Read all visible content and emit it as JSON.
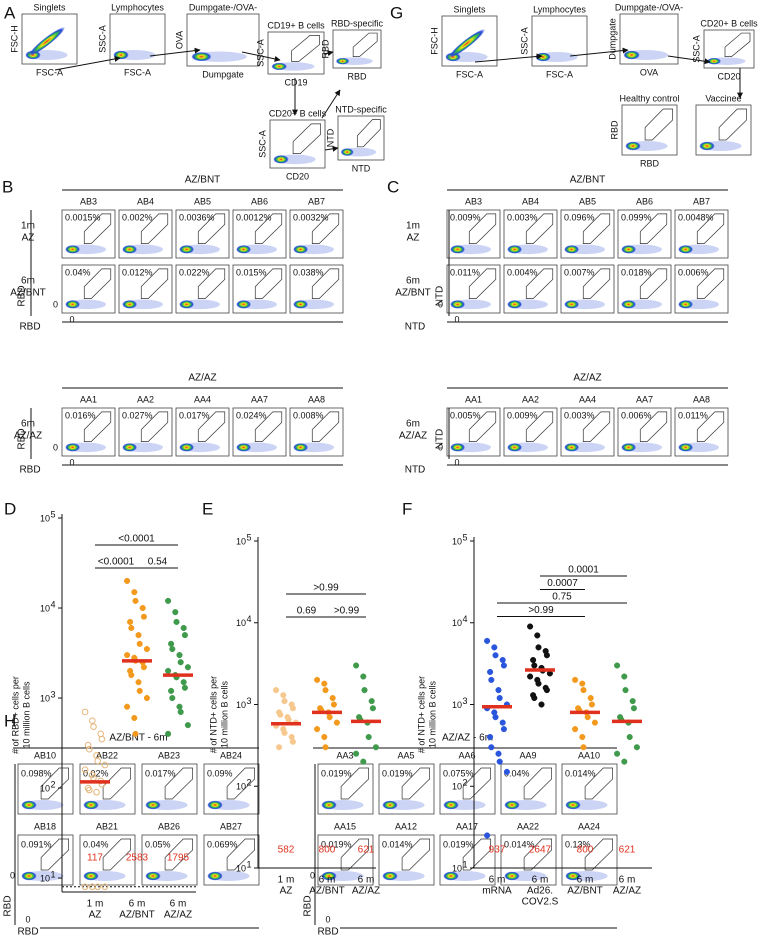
{
  "panel_a": {
    "letter": "A",
    "plots": [
      {
        "title": "Singlets",
        "y_label": "FSC-H",
        "x_label": "FSC-A"
      },
      {
        "title": "Lymphocytes",
        "y_label": "SSC-A",
        "x_label": "FSC-A"
      },
      {
        "title": "Dumpgate-/OVA-",
        "y_label": "OVA",
        "x_label": "Dumpgate"
      },
      {
        "title": "CD19+ B cells",
        "y_label": "SSC-A",
        "x_label": "CD19"
      },
      {
        "title": "RBD-specific",
        "y_label": "RBD",
        "x_label": "RBD"
      },
      {
        "title": "CD20+ B cells",
        "y_label": "SSC-A",
        "x_label": "CD20"
      },
      {
        "title": "NTD-specific",
        "y_label": "NTD",
        "x_label": "NTD"
      }
    ]
  },
  "panel_g": {
    "letter": "G",
    "plots": [
      {
        "title": "Singlets",
        "y_label": "FSC-H",
        "x_label": "FSC-A"
      },
      {
        "title": "Lymphocytes",
        "y_label": "SSC-A",
        "x_label": "FSC-A"
      },
      {
        "title": "Dumpgate-/OVA-",
        "y_label": "Dumpgate",
        "x_label": "OVA"
      },
      {
        "title": "CD20+ B cells",
        "y_label": "SSC-A",
        "x_label": "CD20"
      },
      {
        "title": "Healthy control",
        "y_label": "RBD",
        "x_label": "RBD"
      },
      {
        "title": "Vaccinee"
      }
    ]
  },
  "panel_b": {
    "letter": "B",
    "axis_label": "RBD",
    "origin_label": "0",
    "groups": [
      {
        "header": "AZ/BNT",
        "columns": [
          "AB3",
          "AB4",
          "AB5",
          "AB6",
          "AB7"
        ],
        "rows": [
          {
            "label": [
              "1m",
              "AZ"
            ],
            "percents": [
              "0.0015%",
              "0.002%",
              "0.0036%",
              "0.0012%",
              "0.0032%"
            ]
          },
          {
            "label": [
              "6m",
              "AZ/BNT"
            ],
            "percents": [
              "0.04%",
              "0.012%",
              "0.022%",
              "0.015%",
              "0.038%"
            ]
          }
        ]
      },
      {
        "header": "AZ/AZ",
        "columns": [
          "AA1",
          "AA2",
          "AA4",
          "AA7",
          "AA8"
        ],
        "rows": [
          {
            "label": [
              "6m",
              "AZ/AZ"
            ],
            "percents": [
              "0.016%",
              "0.027%",
              "0.017%",
              "0.024%",
              "0.008%"
            ]
          }
        ]
      }
    ]
  },
  "panel_c": {
    "letter": "C",
    "axis_label": "NTD",
    "origin_label": "0",
    "groups": [
      {
        "header": "AZ/BNT",
        "columns": [
          "AB3",
          "AB4",
          "AB5",
          "AB6",
          "AB7"
        ],
        "rows": [
          {
            "label": [
              "1m",
              "AZ"
            ],
            "percents": [
              "0.009%",
              "0.003%",
              "0.096%",
              "0.099%",
              "0.0048%"
            ]
          },
          {
            "label": [
              "6m",
              "AZ/BNT"
            ],
            "percents": [
              "0.011%",
              "0.004%",
              "0.007%",
              "0.018%",
              "0.006%"
            ]
          }
        ]
      },
      {
        "header": "AZ/AZ",
        "columns": [
          "AA1",
          "AA2",
          "AA4",
          "AA7",
          "AA8"
        ],
        "rows": [
          {
            "label": [
              "6m",
              "AZ/AZ"
            ],
            "percents": [
              "0.005%",
              "0.009%",
              "0.003%",
              "0.006%",
              "0.011%"
            ]
          }
        ]
      }
    ]
  },
  "panel_h": {
    "letter": "H",
    "axis_label": "RBD",
    "origin_label": "0",
    "groups": [
      {
        "header": "AZ/BNT - 6m",
        "rows": [
          [
            {
              "label": "AB10",
              "percent": "0.098%"
            },
            {
              "label": "AB22",
              "percent": "0.02%"
            },
            {
              "label": "AB23",
              "percent": "0.017%"
            },
            {
              "label": "AB24",
              "percent": "0.09%"
            }
          ],
          [
            {
              "label": "AB18",
              "percent": "0.091%"
            },
            {
              "label": "AB21",
              "percent": "0.04%"
            },
            {
              "label": "AB26",
              "percent": "0.05%"
            },
            {
              "label": "AB27",
              "percent": "0.069%"
            }
          ]
        ]
      },
      {
        "header": "AZ/AZ - 6m",
        "rows": [
          [
            {
              "label": "AA3",
              "percent": "0.019%"
            },
            {
              "label": "AA5",
              "percent": "0.019%"
            },
            {
              "label": "AA6",
              "percent": "0.075%"
            },
            {
              "label": "AA9",
              "percent": "0.04%"
            },
            {
              "label": "AA10",
              "percent": "0.014%"
            }
          ],
          [
            {
              "label": "AA15",
              "percent": "0.019%"
            },
            {
              "label": "AA12",
              "percent": "0.014%"
            },
            {
              "label": "AA17",
              "percent": "0.019%"
            },
            {
              "label": "AA22",
              "percent": "0.014%"
            },
            {
              "label": "AA24",
              "percent": "0.13%"
            }
          ]
        ]
      }
    ]
  },
  "chart_data": [
    {
      "type": "strip",
      "letter": "D",
      "y_label": [
        "# of RBD+ cells per",
        "10 million B cells"
      ],
      "log_scale": true,
      "ylim": [
        7,
        100000
      ],
      "threshold": 8,
      "yticks": [
        {
          "value": 10,
          "label": "10",
          "exp": "1"
        },
        {
          "value": 100,
          "label": "10",
          "exp": "2"
        },
        {
          "value": 1000,
          "label": "10",
          "exp": "3"
        },
        {
          "value": 10000,
          "label": "10",
          "exp": "4"
        },
        {
          "value": 100000,
          "label": "10",
          "exp": "5"
        }
      ],
      "categories": [
        [
          "1 m",
          "AZ"
        ],
        [
          "6 m",
          "AZ/BNT"
        ],
        [
          "6 m",
          "AZ/AZ"
        ]
      ],
      "groups": [
        {
          "color": "#e6b57a",
          "hollow": true,
          "values": [
            700,
            560,
            480,
            400,
            350,
            300,
            270,
            230,
            200,
            180,
            160,
            140,
            130,
            120,
            110,
            100,
            95,
            90,
            8,
            8,
            8,
            8
          ]
        },
        {
          "color": "#f39a1e",
          "values": [
            20000,
            15000,
            12000,
            10000,
            8000,
            7000,
            6000,
            5000,
            4000,
            3500,
            3000,
            2800,
            2600,
            2500,
            2200,
            2000,
            1800,
            1500,
            1200,
            1000,
            800,
            600,
            400
          ]
        },
        {
          "color": "#3f9a4c",
          "values": [
            12000,
            9000,
            7000,
            6000,
            5000,
            4000,
            3500,
            3000,
            2500,
            2200,
            2000,
            1800,
            1700,
            1500,
            1300,
            1200,
            1000,
            800,
            700,
            500,
            400
          ]
        }
      ],
      "medians": [
        117,
        2583,
        1795
      ],
      "median_color": "#e0301e",
      "comparisons": [
        "<0.0001",
        "<0.0001",
        "0.54"
      ]
    },
    {
      "type": "strip",
      "letter": "E",
      "y_label": [
        "# of NTD+ cells per",
        "10 million B cells"
      ],
      "log_scale": true,
      "ylim": [
        10,
        100000
      ],
      "yticks": [
        {
          "value": 10,
          "label": "10",
          "exp": "1"
        },
        {
          "value": 100,
          "label": "10",
          "exp": "2"
        },
        {
          "value": 1000,
          "label": "10",
          "exp": "3"
        },
        {
          "value": 10000,
          "label": "10",
          "exp": "4"
        },
        {
          "value": 100000,
          "label": "10",
          "exp": "5"
        }
      ],
      "categories": [
        [
          "1 m",
          "AZ"
        ],
        [
          "6 m",
          "AZ/BNT"
        ],
        [
          "6 m",
          "AZ/AZ"
        ]
      ],
      "groups": [
        {
          "color": "#f6c88e",
          "values": [
            1500,
            1300,
            1100,
            1000,
            900,
            800,
            750,
            700,
            650,
            600,
            550,
            500,
            450,
            400,
            350,
            300
          ]
        },
        {
          "color": "#f39a1e",
          "values": [
            2000,
            1800,
            1500,
            1200,
            1000,
            900,
            850,
            800,
            700,
            600,
            500,
            400,
            300
          ]
        },
        {
          "color": "#3f9a4c",
          "values": [
            3000,
            2200,
            1500,
            1100,
            900,
            700,
            650,
            600,
            400,
            300,
            250,
            200
          ]
        }
      ],
      "medians": [
        582,
        800,
        621
      ],
      "median_color": "#e0301e",
      "comparisons": [
        ">0.99",
        "0.69",
        ">0.99"
      ]
    },
    {
      "type": "strip",
      "letter": "F",
      "y_label": [
        "# of NTD+ cells per",
        "10 million B cells"
      ],
      "log_scale": true,
      "ylim": [
        10,
        100000
      ],
      "yticks": [
        {
          "value": 10,
          "label": "10",
          "exp": "1"
        },
        {
          "value": 100,
          "label": "10",
          "exp": "2"
        },
        {
          "value": 1000,
          "label": "10",
          "exp": "3"
        },
        {
          "value": 10000,
          "label": "10",
          "exp": "4"
        },
        {
          "value": 100000,
          "label": "10",
          "exp": "5"
        }
      ],
      "categories": [
        [
          "6 m",
          "mRNA"
        ],
        [
          "6 m",
          "Ad26.",
          "COV2.S"
        ],
        [
          "6 m",
          "AZ/BNT"
        ],
        [
          "6 m",
          "AZ/AZ"
        ]
      ],
      "groups": [
        {
          "color": "#2a55dd",
          "values": [
            6000,
            5000,
            4000,
            3500,
            3000,
            2500,
            2000,
            1500,
            1200,
            1000,
            900,
            800,
            700,
            600,
            500,
            400,
            300,
            250,
            200,
            150,
            25
          ]
        },
        {
          "color": "#111111",
          "values": [
            9000,
            7000,
            5000,
            4500,
            4000,
            3500,
            3000,
            2800,
            2600,
            2400,
            2200,
            2000,
            1800,
            1600,
            1500,
            1300,
            1200,
            1000
          ]
        },
        {
          "color": "#f39a1e",
          "values": [
            2000,
            1800,
            1500,
            1200,
            1000,
            900,
            850,
            800,
            700,
            600,
            500,
            400,
            300
          ]
        },
        {
          "color": "#3f9a4c",
          "values": [
            3000,
            2200,
            1500,
            1100,
            900,
            700,
            650,
            600,
            400,
            300,
            250,
            200
          ]
        }
      ],
      "medians": [
        937,
        2647,
        800,
        621
      ],
      "median_color": "#e0301e",
      "comparisons": [
        "0.0001",
        "0.0007",
        "0.75",
        ">0.99"
      ]
    }
  ]
}
